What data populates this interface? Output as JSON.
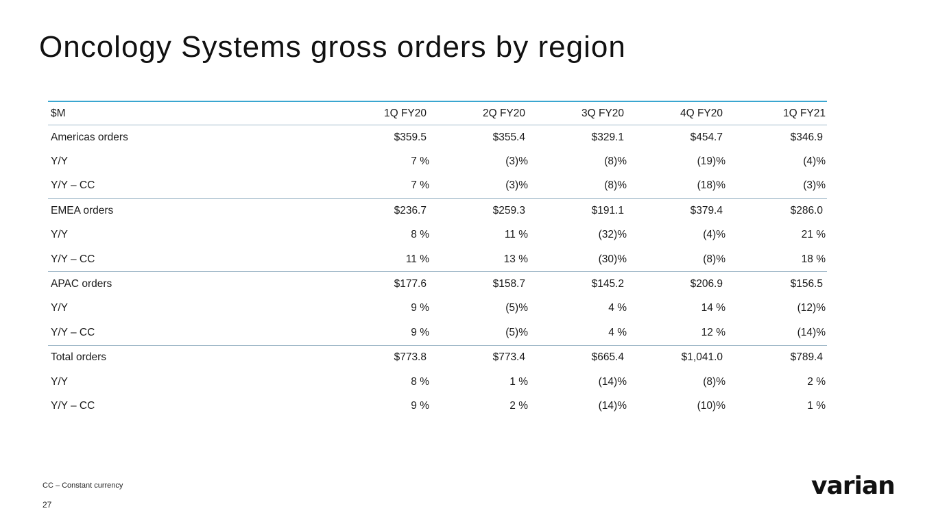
{
  "title": "Oncology Systems gross orders by region",
  "table": {
    "header": [
      "$M",
      "1Q FY20",
      "2Q FY20",
      "3Q FY20",
      "4Q FY20",
      "1Q FY21"
    ],
    "groups": [
      {
        "rows": [
          [
            "Americas orders",
            "$359.5",
            "$355.4",
            "$329.1",
            "$454.7",
            "$346.9"
          ],
          [
            "Y/Y",
            "7 %",
            "(3)%",
            "(8)%",
            "(19)%",
            "(4)%"
          ],
          [
            "Y/Y – CC",
            "7 %",
            "(3)%",
            "(8)%",
            "(18)%",
            "(3)%"
          ]
        ]
      },
      {
        "rows": [
          [
            "EMEA orders",
            "$236.7",
            "$259.3",
            "$191.1",
            "$379.4",
            "$286.0"
          ],
          [
            "Y/Y",
            "8 %",
            "11 %",
            "(32)%",
            "(4)%",
            "21 %"
          ],
          [
            "Y/Y – CC",
            "11 %",
            "13 %",
            "(30)%",
            "(8)%",
            "18 %"
          ]
        ]
      },
      {
        "rows": [
          [
            "APAC orders",
            "$177.6",
            "$158.7",
            "$145.2",
            "$206.9",
            "$156.5"
          ],
          [
            "Y/Y",
            "9 %",
            "(5)%",
            "4 %",
            "14 %",
            "(12)%"
          ],
          [
            "Y/Y – CC",
            "9 %",
            "(5)%",
            "4 %",
            "12 %",
            "(14)%"
          ]
        ]
      },
      {
        "rows": [
          [
            "Total orders",
            "$773.8",
            "$773.4",
            "$665.4",
            "$1,041.0",
            "$789.4"
          ],
          [
            "Y/Y",
            "8 %",
            "1 %",
            "(14)%",
            "(8)%",
            "2 %"
          ],
          [
            "Y/Y – CC",
            "9 %",
            "2 %",
            "(14)%",
            "(10)%",
            "1 %"
          ]
        ]
      }
    ]
  },
  "footnote": "CC – Constant currency",
  "page_number": "27",
  "logo_text": "varian",
  "colors": {
    "rule_accent": "#3aa6d0",
    "rule": "#9fb8c8",
    "text": "#1a1a1a"
  }
}
